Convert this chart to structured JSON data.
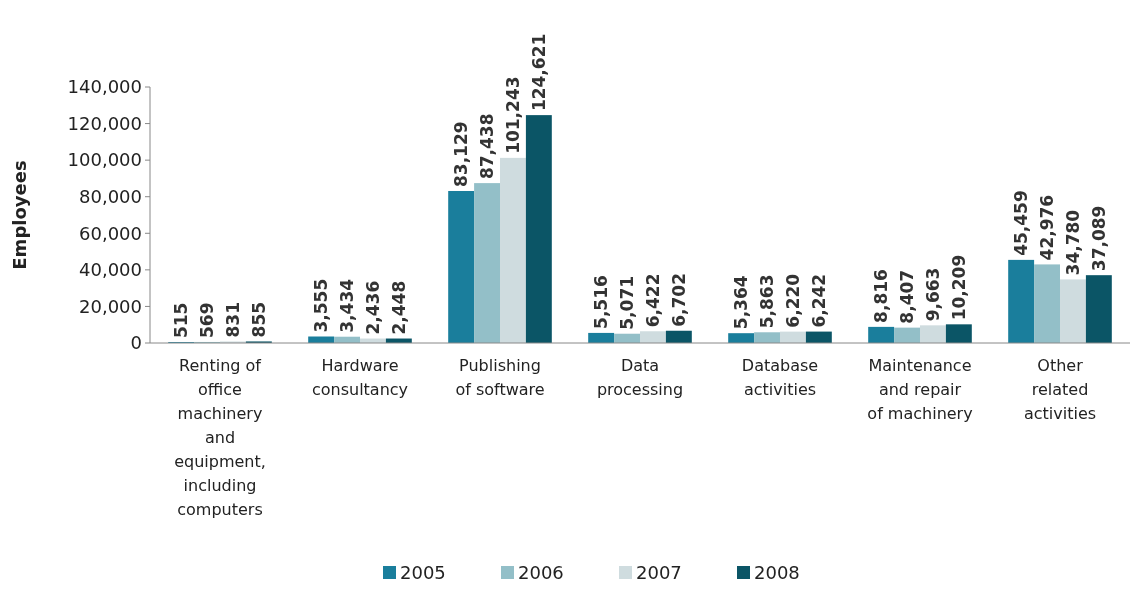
{
  "chart_data": {
    "type": "bar",
    "ylabel": "Employees",
    "categories": [
      "Renting of office machinery and equipment, including computers",
      "Hardware consultancy",
      "Publishing of software",
      "Data processing",
      "Database activities",
      "Maintenance and repair of machinery",
      "Other related activities"
    ],
    "series": [
      {
        "name": "2005",
        "color": "#1a7e9c",
        "values": [
          515,
          3555,
          83129,
          5516,
          5364,
          8816,
          45459
        ],
        "value_labels": [
          "515",
          "3,555",
          "83,129",
          "5,516",
          "5,364",
          "8,816",
          "45,459"
        ]
      },
      {
        "name": "2006",
        "color": "#93bfc8",
        "values": [
          569,
          3434,
          87438,
          5071,
          5863,
          8407,
          42976
        ],
        "value_labels": [
          "569",
          "3,434",
          "87,438",
          "5,071",
          "5,863",
          "8,407",
          "42,976"
        ]
      },
      {
        "name": "2007",
        "color": "#cfdcdf",
        "values": [
          831,
          2436,
          101243,
          6422,
          6220,
          9663,
          34780
        ],
        "value_labels": [
          "831",
          "2,436",
          "101,243",
          "6,422",
          "6,220",
          "9,663",
          "34,780"
        ]
      },
      {
        "name": "2008",
        "color": "#0b5566",
        "values": [
          855,
          2448,
          124621,
          6702,
          6242,
          10209,
          37089
        ],
        "value_labels": [
          "855",
          "2,448",
          "124,621",
          "6,702",
          "6,242",
          "10,209",
          "37,089"
        ]
      }
    ],
    "ylim": [
      0,
      140000
    ],
    "yticks": [
      {
        "value": 0,
        "label": "0"
      },
      {
        "value": 20000,
        "label": "20,000"
      },
      {
        "value": 40000,
        "label": "40,000"
      },
      {
        "value": 60000,
        "label": "60,000"
      },
      {
        "value": 80000,
        "label": "80,000"
      },
      {
        "value": 100000,
        "label": "100,000"
      },
      {
        "value": 120000,
        "label": "120,000"
      },
      {
        "value": 140000,
        "label": "140,000"
      }
    ],
    "grid": false,
    "legend": "bottom"
  }
}
